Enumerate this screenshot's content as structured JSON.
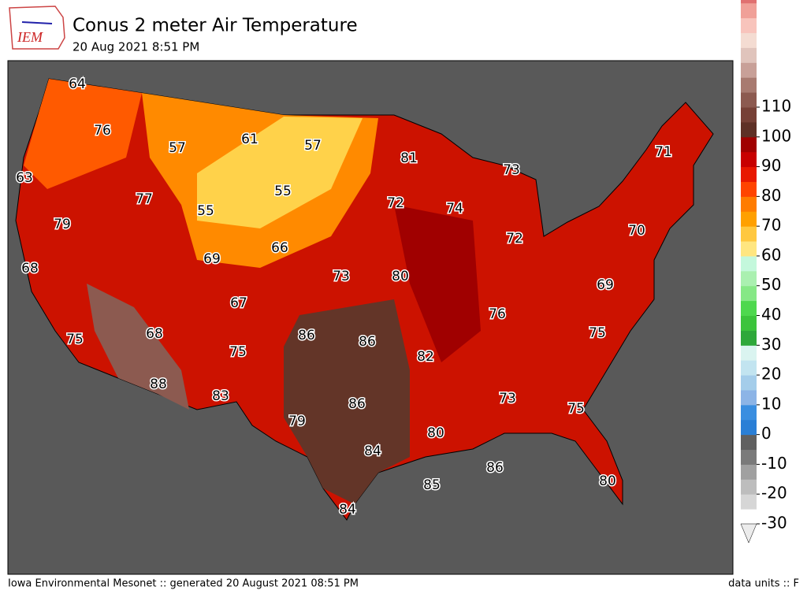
{
  "header": {
    "title": "Conus 2 meter Air Temperature",
    "subtitle": "20 Aug 2021 8:51 PM",
    "logo": "IEM"
  },
  "map": {
    "labels": [
      64,
      76,
      57,
      61,
      57,
      63,
      77,
      55,
      55,
      81,
      73,
      71,
      72,
      74,
      79,
      69,
      66,
      72,
      70,
      68,
      73,
      80,
      69,
      67,
      76,
      86,
      68,
      86,
      75,
      75,
      75,
      82,
      88,
      83,
      86,
      73,
      75,
      79,
      80,
      84,
      86,
      85,
      80,
      84
    ]
  },
  "colorbar": {
    "ticks": [
      -30,
      -20,
      -10,
      0,
      10,
      20,
      30,
      40,
      50,
      60,
      70,
      80,
      90,
      100,
      110
    ],
    "colors": [
      "#ececec",
      "#d6d6d6",
      "#bdbdbd",
      "#a0a0a0",
      "#7a7a7a",
      "#606060",
      "#2a7fd6",
      "#3a8ee0",
      "#8cb4e6",
      "#a4cdea",
      "#c2e4f0",
      "#daf4f0",
      "#2ea83a",
      "#3cc43c",
      "#4ed84e",
      "#86e886",
      "#aaf0b0",
      "#c4f8dc",
      "#ffe680",
      "#ffc840",
      "#ffa000",
      "#ff7c00",
      "#ff4400",
      "#e81800",
      "#c80000",
      "#a00000",
      "#5e3026",
      "#764036",
      "#8c5a50",
      "#a87a70"
    ],
    "top_colors": [
      "#c8a098",
      "#e0c4bc",
      "#f4dcd2",
      "#f8c4bc",
      "#f0a098",
      "#e07070",
      "#c84040"
    ]
  },
  "footer": {
    "left": "Iowa Environmental Mesonet :: generated 20 August 2021 08:51 PM",
    "right": "data units :: F"
  }
}
